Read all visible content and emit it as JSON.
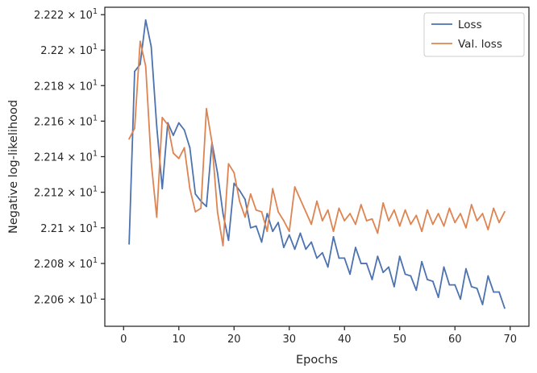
{
  "chart_data": {
    "type": "line",
    "xlabel": "Epochs",
    "ylabel": "Negative log-likelihood",
    "xlim": [
      -3.4,
      73.4
    ],
    "ylim": [
      22.0448,
      22.2242
    ],
    "x_ticks": [
      0,
      10,
      20,
      30,
      40,
      50,
      60,
      70
    ],
    "y_ticks": [
      {
        "value": 22.06,
        "mantissa": "2.206",
        "exponent": "1"
      },
      {
        "value": 22.08,
        "mantissa": "2.208",
        "exponent": "1"
      },
      {
        "value": 22.1,
        "mantissa": "2.21",
        "exponent": "1"
      },
      {
        "value": 22.12,
        "mantissa": "2.212",
        "exponent": "1"
      },
      {
        "value": 22.14,
        "mantissa": "2.214",
        "exponent": "1"
      },
      {
        "value": 22.16,
        "mantissa": "2.216",
        "exponent": "1"
      },
      {
        "value": 22.18,
        "mantissa": "2.218",
        "exponent": "1"
      },
      {
        "value": 22.2,
        "mantissa": "2.22",
        "exponent": "1"
      },
      {
        "value": 22.22,
        "mantissa": "2.222",
        "exponent": "1"
      }
    ],
    "y_scale": "log",
    "grid": false,
    "legend_position": "top-right",
    "x": [
      1,
      2,
      3,
      4,
      5,
      6,
      7,
      8,
      9,
      10,
      11,
      12,
      13,
      14,
      15,
      16,
      17,
      18,
      19,
      20,
      21,
      22,
      23,
      24,
      25,
      26,
      27,
      28,
      29,
      30,
      31,
      32,
      33,
      34,
      35,
      36,
      37,
      38,
      39,
      40,
      41,
      42,
      43,
      44,
      45,
      46,
      47,
      48,
      49,
      50,
      51,
      52,
      53,
      54,
      55,
      56,
      57,
      58,
      59,
      60,
      61,
      62,
      63,
      64,
      65,
      66,
      67,
      68,
      69
    ],
    "series": [
      {
        "name": "Loss",
        "color": "#4c72b0",
        "values": [
          22.091,
          22.188,
          22.192,
          22.217,
          22.202,
          22.157,
          22.122,
          22.159,
          22.152,
          22.159,
          22.155,
          22.145,
          22.119,
          22.115,
          22.112,
          22.148,
          22.131,
          22.108,
          22.093,
          22.125,
          22.121,
          22.116,
          22.1,
          22.101,
          22.092,
          22.108,
          22.098,
          22.103,
          22.089,
          22.096,
          22.088,
          22.097,
          22.088,
          22.092,
          22.083,
          22.086,
          22.078,
          22.095,
          22.083,
          22.083,
          22.074,
          22.089,
          22.08,
          22.08,
          22.071,
          22.084,
          22.075,
          22.078,
          22.067,
          22.084,
          22.074,
          22.073,
          22.065,
          22.081,
          22.071,
          22.07,
          22.061,
          22.078,
          22.068,
          22.068,
          22.06,
          22.077,
          22.067,
          22.066,
          22.057,
          22.073,
          22.064,
          22.064,
          22.055
        ]
      },
      {
        "name": "Val. loss",
        "color": "#dd8452",
        "values": [
          22.15,
          22.156,
          22.205,
          22.191,
          22.137,
          22.106,
          22.162,
          22.158,
          22.142,
          22.139,
          22.145,
          22.122,
          22.109,
          22.111,
          22.167,
          22.148,
          22.109,
          22.09,
          22.136,
          22.131,
          22.115,
          22.106,
          22.119,
          22.11,
          22.109,
          22.098,
          22.122,
          22.109,
          22.104,
          22.098,
          22.123,
          22.116,
          22.109,
          22.102,
          22.115,
          22.104,
          22.11,
          22.098,
          22.111,
          22.104,
          22.108,
          22.102,
          22.113,
          22.104,
          22.105,
          22.097,
          22.114,
          22.104,
          22.11,
          22.101,
          22.11,
          22.102,
          22.107,
          22.098,
          22.11,
          22.102,
          22.108,
          22.101,
          22.111,
          22.103,
          22.108,
          22.1,
          22.113,
          22.104,
          22.108,
          22.099,
          22.111,
          22.103,
          22.109
        ]
      }
    ]
  }
}
